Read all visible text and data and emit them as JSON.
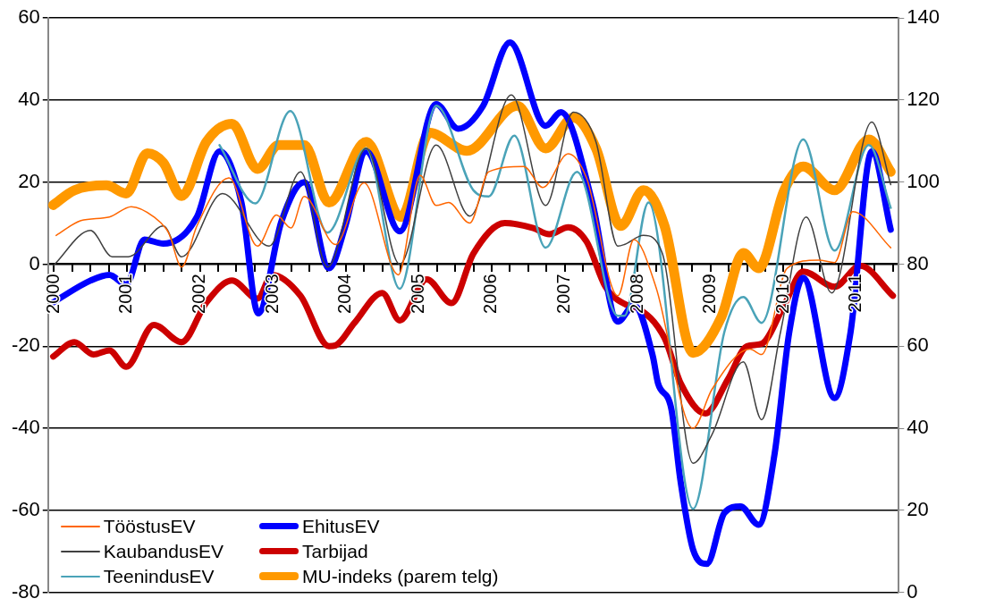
{
  "chart_data": {
    "type": "line",
    "grid": "y",
    "legend": "bottom left",
    "xlim": [
      1999.92,
      2011.58
    ],
    "xticks": [
      {
        "value": 2000,
        "label": "2000"
      },
      {
        "value": 2000.25,
        "label": null
      },
      {
        "value": 2000.5,
        "label": null
      },
      {
        "value": 2000.75,
        "label": null
      },
      {
        "value": 2001,
        "label": "2001"
      },
      {
        "value": 2001.25,
        "label": null
      },
      {
        "value": 2001.5,
        "label": null
      },
      {
        "value": 2001.75,
        "label": null
      },
      {
        "value": 2002,
        "label": "2002"
      },
      {
        "value": 2002.25,
        "label": null
      },
      {
        "value": 2002.5,
        "label": null
      },
      {
        "value": 2002.75,
        "label": null
      },
      {
        "value": 2003,
        "label": "2003"
      },
      {
        "value": 2003.25,
        "label": null
      },
      {
        "value": 2003.5,
        "label": null
      },
      {
        "value": 2003.75,
        "label": null
      },
      {
        "value": 2004,
        "label": "2004"
      },
      {
        "value": 2004.25,
        "label": null
      },
      {
        "value": 2004.5,
        "label": null
      },
      {
        "value": 2004.75,
        "label": null
      },
      {
        "value": 2005,
        "label": "2005"
      },
      {
        "value": 2005.25,
        "label": null
      },
      {
        "value": 2005.5,
        "label": null
      },
      {
        "value": 2005.75,
        "label": null
      },
      {
        "value": 2006,
        "label": "2006"
      },
      {
        "value": 2006.25,
        "label": null
      },
      {
        "value": 2006.5,
        "label": null
      },
      {
        "value": 2006.75,
        "label": null
      },
      {
        "value": 2007,
        "label": "2007"
      },
      {
        "value": 2007.25,
        "label": null
      },
      {
        "value": 2007.5,
        "label": null
      },
      {
        "value": 2007.75,
        "label": null
      },
      {
        "value": 2008,
        "label": "2008"
      },
      {
        "value": 2008.25,
        "label": null
      },
      {
        "value": 2008.5,
        "label": null
      },
      {
        "value": 2008.75,
        "label": null
      },
      {
        "value": 2009,
        "label": "2009"
      },
      {
        "value": 2009.25,
        "label": null
      },
      {
        "value": 2009.5,
        "label": null
      },
      {
        "value": 2009.75,
        "label": null
      },
      {
        "value": 2010,
        "label": "2010"
      },
      {
        "value": 2010.25,
        "label": null
      },
      {
        "value": 2010.5,
        "label": null
      },
      {
        "value": 2010.75,
        "label": null
      },
      {
        "value": 2011,
        "label": "2011"
      },
      {
        "value": 2011.25,
        "label": null
      },
      {
        "value": 2011.5,
        "label": null
      }
    ],
    "ylim": [
      -80,
      60
    ],
    "yticks": [
      -80,
      -60,
      -40,
      -20,
      0,
      20,
      40,
      60
    ],
    "y2lim": [
      0,
      140
    ],
    "y2ticks": [
      0,
      20,
      40,
      60,
      80,
      100,
      120,
      140
    ],
    "series": [
      {
        "name": "TööstusEV",
        "color": "#ff6600",
        "x": [
          2000.03,
          2000.37,
          2000.76,
          2001.06,
          2001.37,
          2001.57,
          2001.75,
          2001.96,
          2002.4,
          2002.79,
          2003.05,
          2003.25,
          2003.43,
          2003.86,
          2004.25,
          2004.72,
          2005.02,
          2005.24,
          2005.41,
          2005.7,
          2005.96,
          2006.44,
          2006.7,
          2007.05,
          2007.3,
          2007.73,
          2007.95,
          2008.25,
          2008.76,
          2009.02,
          2009.54,
          2009.7,
          2010.05,
          2010.48,
          2010.7,
          2010.95,
          2011.47
        ],
        "values": [
          7,
          10.6,
          11.5,
          14,
          11.5,
          7.7,
          -0.7,
          9.3,
          21,
          4.4,
          12,
          8.8,
          16.5,
          4.8,
          19.8,
          -2.6,
          21.6,
          14.3,
          15,
          10,
          22.5,
          23.8,
          18.7,
          26.9,
          21,
          -7.7,
          6,
          -5.5,
          -40,
          -30.5,
          -20.7,
          -22,
          -1,
          1,
          0.4,
          12.8,
          4
        ]
      },
      {
        "name": "KaubandusEV",
        "color": "#404040",
        "x": [
          1999.99,
          2000.5,
          2000.8,
          2001.02,
          2001.5,
          2001.75,
          2002.31,
          2002.95,
          2003.38,
          2003.75,
          2004.28,
          2004.74,
          2005.24,
          2005.7,
          2006.27,
          2006.74,
          2007.12,
          2007.43,
          2007.73,
          2007.82,
          2008.08,
          2008.34,
          2008.76,
          2009.02,
          2009.45,
          2009.7,
          2009.96,
          2010.31,
          2010.66,
          2011.21,
          2011.47
        ],
        "values": [
          -0.4,
          8.2,
          1.8,
          1.8,
          9.3,
          1.8,
          17.2,
          4.4,
          22.5,
          -0.7,
          28.2,
          0,
          29,
          11.7,
          41.2,
          14.3,
          37,
          29.8,
          4.4,
          4.8,
          7,
          2.6,
          -48.5,
          -41.5,
          -23.8,
          -37.9,
          -16.5,
          11.5,
          -7,
          34.6,
          19.4
        ]
      },
      {
        "name": "TeenindusEV",
        "color": "#4aa3b8",
        "x": [
          2002.27,
          2002.76,
          2003.24,
          2003.75,
          2004.28,
          2004.74,
          2005.24,
          2005.75,
          2005.96,
          2006.31,
          2006.74,
          2007.17,
          2007.73,
          2007.82,
          2008.15,
          2008.76,
          2009.19,
          2009.45,
          2009.7,
          2010.27,
          2010.7,
          2011.17,
          2011.47
        ],
        "values": [
          29,
          14.8,
          37.3,
          7.7,
          28.2,
          -6,
          38.6,
          18,
          16.5,
          31.3,
          4,
          22.5,
          -12.6,
          -12.6,
          15,
          -59.6,
          -16.5,
          -8,
          -14.3,
          30.4,
          3.3,
          29,
          13.7
        ]
      },
      {
        "name": "EhitusEV",
        "color": "#0000ff",
        "x": [
          1999.99,
          2000.5,
          2000.76,
          2000.99,
          2001.24,
          2001.5,
          2001.96,
          2002.27,
          2002.57,
          2002.8,
          2003.12,
          2003.43,
          2003.77,
          2003.99,
          2004.28,
          2004.74,
          2005.24,
          2005.54,
          2005.88,
          2006.25,
          2006.74,
          2006.95,
          2007.38,
          2007.73,
          2007.95,
          2008.21,
          2008.28,
          2008.46,
          2008.59,
          2008.76,
          2008.95,
          2009.19,
          2009.41,
          2009.66,
          2009.88,
          2010.08,
          2010.27,
          2010.7,
          2010.92,
          2011.21,
          2011.47
        ],
        "values": [
          -9.3,
          -4,
          -2.6,
          -5,
          6,
          5,
          11.5,
          27.5,
          15,
          -12,
          10.5,
          20,
          -1,
          9,
          27.5,
          8,
          39,
          33,
          38.5,
          54,
          33.7,
          37,
          15,
          -14,
          -10,
          -22.5,
          -29,
          -35,
          -53,
          -69.5,
          -73,
          -60.6,
          -59,
          -63.5,
          -46,
          -16.5,
          -3.3,
          -32.6,
          -16.5,
          27.5,
          8.4
        ]
      },
      {
        "name": "Tarbijad",
        "color": "#cc0000",
        "x": [
          1999.99,
          2000.28,
          2000.54,
          2000.76,
          2000.99,
          2001.37,
          2001.75,
          2002.09,
          2002.44,
          2002.79,
          2002.99,
          2003.38,
          2003.77,
          2003.86,
          2004.12,
          2004.5,
          2004.74,
          2005.11,
          2005.45,
          2005.75,
          2006.18,
          2006.57,
          2006.79,
          2007.05,
          2007.3,
          2007.56,
          2007.86,
          2007.99,
          2008.37,
          2008.59,
          2008.93,
          2009.24,
          2009.5,
          2009.7,
          2010.01,
          2010.27,
          2010.7,
          2011.05,
          2011.5
        ],
        "values": [
          -22.5,
          -19,
          -22,
          -21,
          -25,
          -14.8,
          -19,
          -9.3,
          -4,
          -8.4,
          -2.6,
          -7.7,
          -20,
          -19.8,
          -14.3,
          -7,
          -13.7,
          -3.7,
          -9.5,
          2.6,
          10,
          8.8,
          7.3,
          9,
          5.5,
          -5.5,
          -10,
          -10.6,
          -18,
          -29,
          -36.4,
          -28,
          -20,
          -19.4,
          -10,
          -1.8,
          -5.5,
          -0.4,
          -7.7
        ]
      },
      {
        "name": "MU-indeks (parem telg)",
        "color": "#ff9900",
        "axis": "y2",
        "x": [
          1999.99,
          2000.28,
          2000.72,
          2000.99,
          2001.28,
          2001.5,
          2001.75,
          2002.09,
          2002.44,
          2002.79,
          2003.08,
          2003.43,
          2003.77,
          2004.28,
          2004.76,
          2005.15,
          2005.66,
          2006.35,
          2006.74,
          2007.12,
          2007.43,
          2007.77,
          2008.08,
          2008.37,
          2008.76,
          2009.15,
          2009.45,
          2009.66,
          2010.01,
          2010.27,
          2010.7,
          2011.17,
          2011.47
        ],
        "values": [
          94.4,
          98,
          99.2,
          97.2,
          107,
          104.7,
          96.6,
          109.8,
          114.2,
          103.2,
          109,
          109,
          95,
          109.8,
          91.5,
          112,
          107.6,
          118.6,
          108.2,
          115.7,
          108.2,
          89.3,
          98,
          89.3,
          58.4,
          67.2,
          82.7,
          79,
          98,
          103.8,
          98,
          110.4,
          102.5
        ]
      }
    ]
  }
}
